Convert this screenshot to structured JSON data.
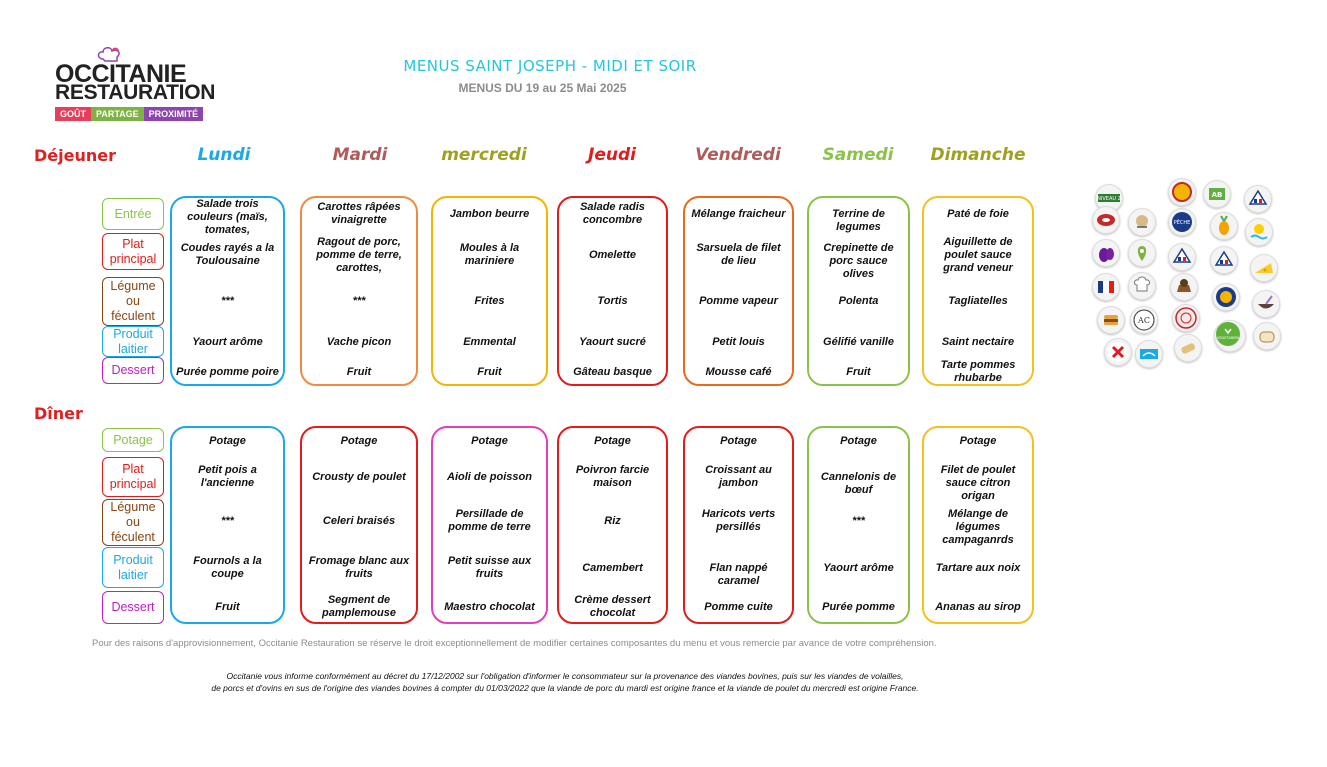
{
  "logo": {
    "line1": "OCCITANIE",
    "line2": "RESTAURATION",
    "tagline": [
      "GOÛT",
      "PARTAGE",
      "PROXIMITÉ"
    ],
    "tag_colors": [
      "#e83e5c",
      "#7cb342",
      "#8e44ad"
    ]
  },
  "header": {
    "title": "MENUS SAINT JOSEPH - MIDI ET SOIR",
    "subtitle": "MENUS DU 19 au 25 Mai 2025"
  },
  "meals": {
    "lunch": "Déjeuner",
    "dinner": "Dîner"
  },
  "days": [
    {
      "name": "Lundi",
      "color": "#1aa9e8"
    },
    {
      "name": "Mardi",
      "color": "#b05a5a"
    },
    {
      "name": "mercredi",
      "color": "#a0a020"
    },
    {
      "name": "Jeudi",
      "color": "#e31b1b"
    },
    {
      "name": "Vendredi",
      "color": "#b05a5a"
    },
    {
      "name": "Samedi",
      "color": "#8bc34a"
    },
    {
      "name": "Dimanche",
      "color": "#a0a020"
    }
  ],
  "lunch_categories": [
    "Entrée",
    "Plat principal",
    "Légume ou féculent",
    "Produit laitier",
    "Dessert"
  ],
  "dinner_categories": [
    "Potage",
    "Plat principal",
    "Légume ou féculent",
    "Produit laitier",
    "Dessert"
  ],
  "lunch": [
    [
      "Salade trois couleurs (maïs, tomates,",
      "Coudes rayés a la Toulousaine",
      "***",
      "Yaourt arôme",
      "Purée pomme poire"
    ],
    [
      "Carottes râpées vinaigrette",
      "Ragout de porc, pomme de terre, carottes, champignons",
      "***",
      "Vache picon",
      "Fruit"
    ],
    [
      "Jambon beurre",
      "Moules à la mariniere",
      "Frites",
      "Emmental",
      "Fruit"
    ],
    [
      "Salade radis concombre",
      "Omelette",
      "Tortis",
      "Yaourt sucré",
      "Gâteau basque"
    ],
    [
      "Mélange fraicheur",
      "Sarsuela de filet de lieu",
      "Pomme vapeur",
      "Petit louis",
      "Mousse café"
    ],
    [
      "Terrine de legumes",
      "Crepinette de porc sauce olives",
      "Polenta",
      "Gélifié vanille",
      "Fruit"
    ],
    [
      "Paté de foie",
      "Aiguillette de poulet sauce grand veneur",
      "Tagliatelles",
      "Saint nectaire",
      "Tarte pommes rhubarbe"
    ]
  ],
  "dinner": [
    [
      "Potage",
      "Petit pois a l'ancienne",
      "***",
      "Fournols a la coupe",
      "Fruit"
    ],
    [
      "Potage",
      "Crousty de poulet",
      "Celeri braisés",
      "Fromage blanc aux fruits",
      "Segment de pamplemouse"
    ],
    [
      "Potage",
      "Aioli de poisson",
      "Persillade de pomme de terre",
      "Petit suisse aux fruits",
      "Maestro chocolat"
    ],
    [
      "Potage",
      "Poivron farcie maison",
      "Riz",
      "Camembert",
      "Crème dessert chocolat"
    ],
    [
      "Potage",
      "Croissant au jambon",
      "Haricots verts persillés",
      "Flan nappé caramel",
      "Pomme cuite"
    ],
    [
      "Potage",
      "Cannelonis de bœuf",
      "***",
      "Yaourt arôme",
      "Purée pomme"
    ],
    [
      "Potage",
      "Filet de poulet sauce citron origan",
      "Mélange de légumes campaganrds",
      "Tartare aux noix",
      "Ananas au sirop"
    ]
  ],
  "footer": {
    "note": "Pour des raisons d'approvisionnement, Occitanie Restauration se réserve le droit exceptionnellement de modifier certaines composantes du menu et vous remercie par avance de votre compréhension.",
    "legal1": "Occitanie vous informe conformément au décret du 17/12/2002 sur l'obligation d'informer le consommateur sur la provenance des viandes bovines, puis sur les viandes de volailles,",
    "legal2": "de porcs et d'ovins en sus de l'origine des viandes bovines à compter du 01/03/2022 que la viande de porc du mardi est origine france et la viande de poulet du mercredi est origine France."
  },
  "legend_labels": {
    "haute_valeur": "NIVEAU 2",
    "peche": "PÊCHE",
    "ab": "AB",
    "vegetarien": "VEGETARIEN"
  }
}
